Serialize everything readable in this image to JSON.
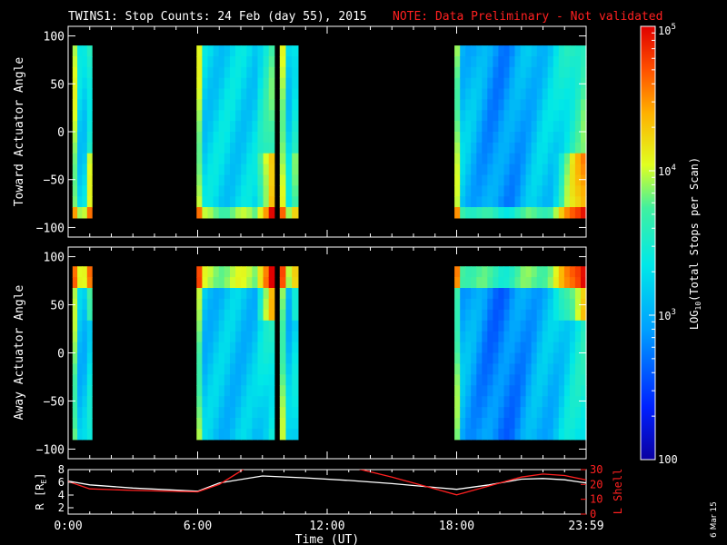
{
  "header": {
    "title": "TWINS1: Stop Counts: 24 Feb (day  55), 2015",
    "note": "NOTE: Data Preliminary - Not validated"
  },
  "date_stamp": "6 Mar 15",
  "colors": {
    "note": "#ff2020",
    "r_line": "#ffffff",
    "l_shell_line": "#ff2020"
  },
  "chart_data": [
    {
      "type": "heatmap",
      "name_key": "toward",
      "ylabel": "Toward Actuator Angle",
      "ylim": [
        -110,
        110
      ],
      "xlim_hours": [
        0,
        24
      ],
      "y_ticks": [
        "100",
        "50",
        "0",
        "−50",
        "−100"
      ],
      "y_tick_values": [
        100,
        50,
        0,
        -50,
        -100
      ],
      "angle_range": [
        -90,
        90
      ],
      "data_blocks_hours": [
        [
          0.2,
          1.1
        ],
        [
          5.95,
          9.55
        ],
        [
          9.8,
          10.65
        ],
        [
          17.9,
          24.0
        ]
      ],
      "log10_counts_mid": 3.2
    },
    {
      "type": "heatmap",
      "name_key": "away",
      "ylabel": "Away Actuator Angle",
      "ylim": [
        -110,
        110
      ],
      "xlim_hours": [
        0,
        24
      ],
      "y_ticks": [
        "100",
        "50",
        "0",
        "−50",
        "−100"
      ],
      "y_tick_values": [
        100,
        50,
        0,
        -50,
        -100
      ],
      "angle_range": [
        -90,
        90
      ],
      "data_blocks_hours": [
        [
          0.2,
          1.1
        ],
        [
          5.95,
          9.55
        ],
        [
          9.8,
          10.65
        ],
        [
          17.9,
          24.0
        ]
      ],
      "log10_counts_mid": 3.1
    },
    {
      "type": "line",
      "name_key": "orbit",
      "xlabel": "Time (UT)",
      "x_ticks": [
        "0:00",
        "6:00",
        "12:00",
        "18:00",
        "23:59"
      ],
      "x_tick_hours": [
        0,
        6,
        12,
        18,
        24
      ],
      "ylabel_left": "R [R",
      "ylabel_left_sub": "E",
      "ylabel_left_end": "]",
      "ylabel_right": "L Shell",
      "ylim_left": [
        1,
        8
      ],
      "ylim_right": [
        0,
        30
      ],
      "left_ticks": [
        "8",
        "6",
        "4",
        "2"
      ],
      "left_tick_values": [
        8,
        6,
        4,
        2
      ],
      "right_ticks": [
        "30",
        "20",
        "10",
        "0"
      ],
      "right_tick_values": [
        30,
        20,
        10,
        0
      ],
      "series": [
        {
          "axis": "left",
          "x": [
            0,
            1,
            3,
            6,
            7,
            9,
            11,
            13,
            15,
            17,
            18,
            19.5,
            21,
            22,
            23,
            24
          ],
          "y": [
            6.2,
            5.6,
            5.1,
            4.6,
            5.9,
            7.0,
            6.7,
            6.3,
            5.8,
            5.2,
            4.9,
            5.6,
            6.5,
            6.6,
            6.4,
            5.9
          ]
        },
        {
          "axis": "right",
          "x": [
            0,
            1,
            3,
            6,
            7,
            8,
            8.2
          ],
          "y": [
            22,
            17,
            16,
            15,
            20,
            29,
            31
          ]
        },
        {
          "axis": "right",
          "x": [
            13.3,
            15,
            17,
            18,
            19,
            21,
            22,
            23,
            24
          ],
          "y": [
            31,
            25,
            17,
            13,
            17,
            25,
            27,
            26,
            23
          ]
        }
      ]
    },
    {
      "type": "colorbar",
      "name_key": "colorbar",
      "label": "LOG",
      "label_sub": "10",
      "label_end": "(Total Stops per Scan)",
      "scale": "log",
      "range": [
        100,
        100000
      ],
      "tick_labels": [
        "10",
        "10",
        "10",
        "100"
      ],
      "tick_sups": [
        "5",
        "4",
        "3",
        ""
      ],
      "tick_values": [
        100000,
        10000,
        1000,
        100
      ]
    }
  ]
}
